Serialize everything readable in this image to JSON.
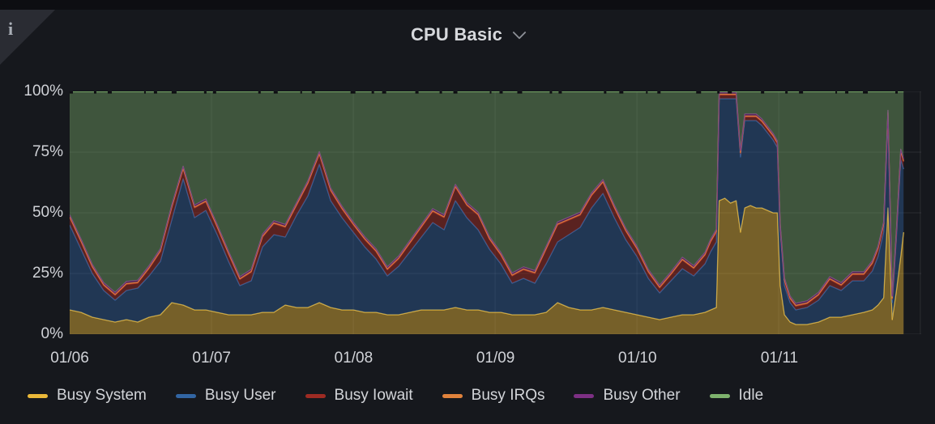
{
  "panel": {
    "title": "CPU Basic",
    "info_icon": "i"
  },
  "colors": {
    "panel_background": "#16181d",
    "corner_background": "#2a2c33",
    "tick_text": "#d0d2d7",
    "title_text": "#d6d8dc"
  },
  "chart_data": {
    "type": "area",
    "stacked": true,
    "title": "CPU Basic",
    "unit": "percent",
    "ylim": [
      0,
      100
    ],
    "grid": true,
    "legend_position": "bottom",
    "x_unit": "day of January (labels MM/DD)",
    "x_range": [
      6,
      12
    ],
    "yticks": [
      {
        "value": 0,
        "label": "0%"
      },
      {
        "value": 25,
        "label": "25%"
      },
      {
        "value": 50,
        "label": "50%"
      },
      {
        "value": 75,
        "label": "75%"
      },
      {
        "value": 100,
        "label": "100%"
      }
    ],
    "xticks": [
      {
        "day": 6,
        "label": "01/06"
      },
      {
        "day": 7,
        "label": "01/07"
      },
      {
        "day": 8,
        "label": "01/08"
      },
      {
        "day": 9,
        "label": "01/09"
      },
      {
        "day": 10,
        "label": "01/10"
      },
      {
        "day": 11,
        "label": "01/11"
      }
    ],
    "x_days": [
      6.0,
      6.08,
      6.16,
      6.24,
      6.32,
      6.4,
      6.48,
      6.56,
      6.64,
      6.72,
      6.8,
      6.88,
      6.96,
      7.04,
      7.12,
      7.2,
      7.28,
      7.36,
      7.44,
      7.52,
      7.6,
      7.68,
      7.76,
      7.84,
      7.92,
      8.0,
      8.08,
      8.16,
      8.24,
      8.32,
      8.4,
      8.48,
      8.56,
      8.64,
      8.72,
      8.8,
      8.88,
      8.96,
      9.04,
      9.12,
      9.2,
      9.28,
      9.36,
      9.44,
      9.52,
      9.6,
      9.68,
      9.76,
      9.84,
      9.92,
      10.0,
      10.08,
      10.16,
      10.24,
      10.32,
      10.4,
      10.48,
      10.52,
      10.56,
      10.58,
      10.62,
      10.66,
      10.7,
      10.73,
      10.76,
      10.8,
      10.84,
      10.88,
      10.92,
      10.96,
      10.99,
      11.01,
      11.04,
      11.08,
      11.12,
      11.2,
      11.28,
      11.36,
      11.44,
      11.52,
      11.6,
      11.66,
      11.7,
      11.74,
      11.77,
      11.8,
      11.83,
      11.86,
      11.88
    ],
    "series": [
      {
        "name": "Busy System",
        "color": "#EAB839",
        "values": [
          10,
          9,
          7,
          6,
          5,
          6,
          5,
          7,
          8,
          13,
          12,
          10,
          10,
          9,
          8,
          8,
          8,
          9,
          9,
          12,
          11,
          11,
          13,
          11,
          10,
          10,
          9,
          9,
          8,
          8,
          9,
          10,
          10,
          10,
          11,
          10,
          10,
          9,
          9,
          8,
          8,
          8,
          9,
          13,
          11,
          10,
          10,
          11,
          10,
          9,
          8,
          7,
          6,
          7,
          8,
          8,
          9,
          10,
          11,
          55,
          56,
          54,
          55,
          42,
          52,
          53,
          52,
          52,
          51,
          50,
          50,
          20,
          8,
          5,
          4,
          4,
          5,
          7,
          7,
          8,
          9,
          10,
          12,
          15,
          52,
          6,
          18,
          32,
          42
        ]
      },
      {
        "name": "Busy User",
        "color": "#3265a3",
        "values": [
          35,
          26,
          18,
          12,
          9,
          12,
          14,
          17,
          22,
          34,
          52,
          38,
          41,
          32,
          22,
          12,
          14,
          27,
          32,
          28,
          38,
          46,
          57,
          44,
          38,
          32,
          27,
          22,
          16,
          20,
          25,
          30,
          36,
          33,
          44,
          38,
          33,
          26,
          20,
          13,
          15,
          13,
          20,
          25,
          30,
          34,
          42,
          47,
          38,
          30,
          24,
          16,
          11,
          15,
          19,
          16,
          20,
          24,
          27,
          42,
          41,
          43,
          42,
          31,
          36,
          35,
          36,
          34,
          32,
          30,
          27,
          22,
          12,
          8,
          6,
          7,
          9,
          13,
          11,
          14,
          13,
          16,
          20,
          27,
          36,
          7,
          22,
          40,
          26
        ]
      },
      {
        "name": "Busy Iowait",
        "color": "#9e2b23",
        "values": [
          3,
          3,
          2.5,
          2,
          2,
          2.5,
          2,
          3,
          4,
          5,
          4,
          4,
          3.5,
          3,
          3,
          2.5,
          3.5,
          4,
          4.5,
          4,
          4,
          5,
          4,
          4,
          3.5,
          3,
          3,
          3,
          2.5,
          3,
          3.5,
          4,
          4.5,
          5,
          5.5,
          5,
          6,
          4,
          3.5,
          3,
          3.5,
          4,
          6,
          7,
          6,
          5,
          5,
          4.5,
          4,
          3.5,
          3,
          2.5,
          2,
          2.5,
          3.5,
          3,
          3.5,
          4,
          4,
          1.5,
          1.5,
          1.5,
          1.5,
          1.5,
          1.5,
          1.5,
          1.5,
          1.5,
          1.5,
          1.5,
          1.5,
          2,
          2,
          1.5,
          1.5,
          1.5,
          2,
          2.5,
          2,
          2.5,
          2.5,
          3,
          3,
          3,
          3,
          1.5,
          2,
          3,
          3
        ]
      },
      {
        "name": "Busy IRQs",
        "color": "#e0823c",
        "values": 0.4
      },
      {
        "name": "Busy Other",
        "color": "#7d3084",
        "values": 0.8
      },
      {
        "name": "Idle",
        "color": "#7eb26d",
        "values": "remainder"
      }
    ]
  }
}
